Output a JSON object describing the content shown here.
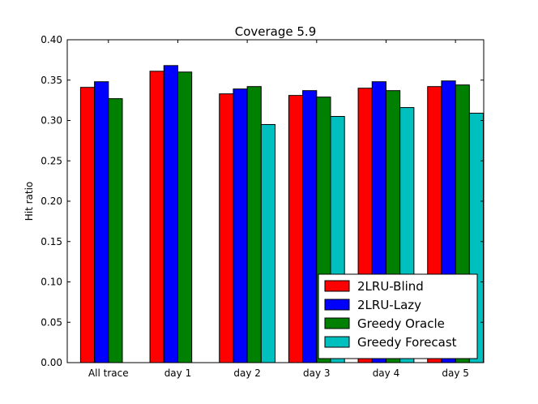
{
  "chart_data": {
    "type": "bar",
    "title": "Coverage 5.9",
    "xlabel": "",
    "ylabel": "Hit ratio",
    "ylim": [
      0,
      0.4
    ],
    "yticks": [
      "0.00",
      "0.05",
      "0.10",
      "0.15",
      "0.20",
      "0.25",
      "0.30",
      "0.35",
      "0.40"
    ],
    "categories": [
      "All trace",
      "day 1",
      "day 2",
      "day 3",
      "day 4",
      "day 5"
    ],
    "series": [
      {
        "name": "2LRU-Blind",
        "color": "#ff0000",
        "values": [
          0.341,
          0.361,
          0.333,
          0.331,
          0.34,
          0.342
        ]
      },
      {
        "name": "2LRU-Lazy",
        "color": "#0000ff",
        "values": [
          0.348,
          0.368,
          0.339,
          0.337,
          0.348,
          0.349
        ]
      },
      {
        "name": "Greedy Oracle",
        "color": "#008000",
        "values": [
          0.327,
          0.36,
          0.342,
          0.329,
          0.337,
          0.344
        ]
      },
      {
        "name": "Greedy Forecast",
        "color": "#00bfbf",
        "values": [
          null,
          null,
          0.295,
          0.305,
          0.316,
          0.309
        ]
      }
    ],
    "grid": false,
    "legend_position": "lower-right"
  }
}
